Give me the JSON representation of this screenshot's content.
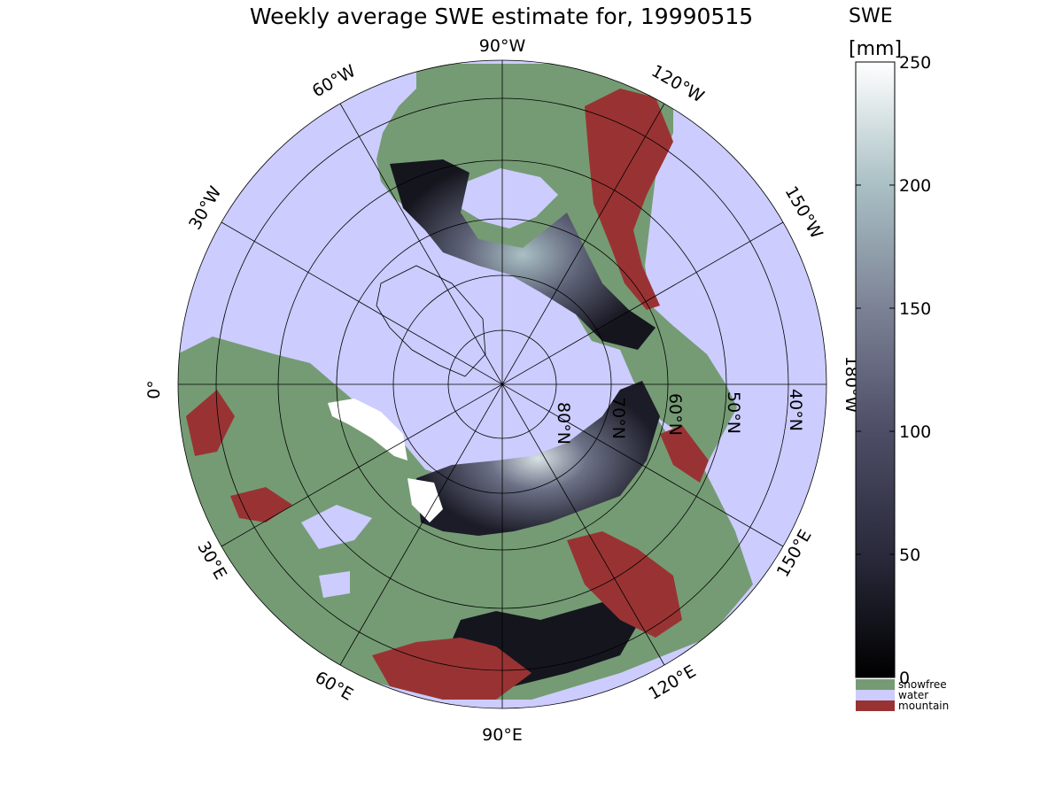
{
  "title": "Weekly average SWE estimate for, 19990515",
  "colorbar": {
    "title_line1": "SWE",
    "title_line2": "[mm]",
    "ticks": [
      {
        "value": 0,
        "label": "0"
      },
      {
        "value": 50,
        "label": "50"
      },
      {
        "value": 100,
        "label": "100"
      },
      {
        "value": 150,
        "label": "150"
      },
      {
        "value": 200,
        "label": "200"
      },
      {
        "value": 250,
        "label": "250"
      }
    ],
    "range": [
      0,
      250
    ],
    "colormap": [
      "#000000",
      "#2a2a3c",
      "#4d4d66",
      "#7c8296",
      "#a9c0c4",
      "#ffffff"
    ]
  },
  "legend": [
    {
      "label": "snowfree",
      "color": "#759b74"
    },
    {
      "label": "water",
      "color": "#ccccff"
    },
    {
      "label": "mountain",
      "color": "#993333"
    }
  ],
  "map": {
    "projection": "north polar stereographic",
    "ocean_color": "#ccccff",
    "land_color": "#759b74",
    "mountain_color": "#993333",
    "longitude_labels": [
      {
        "lon": "90W",
        "label": "90°W"
      },
      {
        "lon": "120W",
        "label": "120°W"
      },
      {
        "lon": "150W",
        "label": "150°W"
      },
      {
        "lon": "180W",
        "label": "180°W"
      },
      {
        "lon": "150E",
        "label": "150°E"
      },
      {
        "lon": "120E",
        "label": "120°E"
      },
      {
        "lon": "90E",
        "label": "90°E"
      },
      {
        "lon": "60E",
        "label": "60°E"
      },
      {
        "lon": "30E",
        "label": "30°E"
      },
      {
        "lon": "0",
        "label": "0°"
      },
      {
        "lon": "30W",
        "label": "30°W"
      },
      {
        "lon": "60W",
        "label": "60°W"
      }
    ],
    "latitude_labels": [
      {
        "lat": 80,
        "label": "80°N"
      },
      {
        "lat": 70,
        "label": "70°N"
      },
      {
        "lat": 60,
        "label": "60°N"
      },
      {
        "lat": 50,
        "label": "50°N"
      },
      {
        "lat": 40,
        "label": "40°N"
      }
    ]
  }
}
